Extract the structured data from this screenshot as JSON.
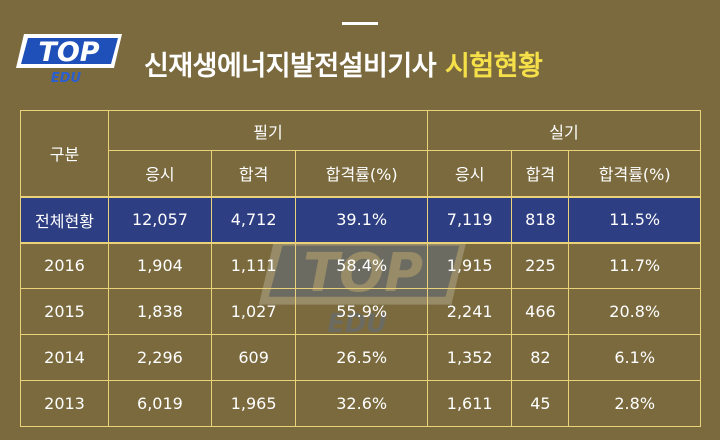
{
  "logo": {
    "main": "TOP",
    "sub": "EDU"
  },
  "title": {
    "main": "신재생에너지발전설비기사",
    "highlight": "시험현황"
  },
  "table": {
    "corner": "구분",
    "groups": [
      "필기",
      "실기"
    ],
    "subheaders": [
      "응시",
      "합격",
      "합격률(%)",
      "응시",
      "합격",
      "합격률(%)"
    ],
    "total": {
      "label": "전체현황",
      "values": [
        "12,057",
        "4,712",
        "39.1%",
        "7,119",
        "818",
        "11.5%"
      ]
    },
    "years": [
      {
        "label": "2016",
        "values": [
          "1,904",
          "1,111",
          "58.4%",
          "1,915",
          "225",
          "11.7%"
        ]
      },
      {
        "label": "2015",
        "values": [
          "1,838",
          "1,027",
          "55.9%",
          "2,241",
          "466",
          "20.8%"
        ]
      },
      {
        "label": "2014",
        "values": [
          "2,296",
          "609",
          "26.5%",
          "1,352",
          "82",
          "6.1%"
        ]
      },
      {
        "label": "2013",
        "values": [
          "6,019",
          "1,965",
          "32.6%",
          "1,611",
          "45",
          "2.8%"
        ]
      }
    ]
  },
  "colors": {
    "background": "#7a6a3e",
    "border": "#ead27a",
    "total_row": "#2e3e82",
    "highlight": "#f5e04a"
  }
}
